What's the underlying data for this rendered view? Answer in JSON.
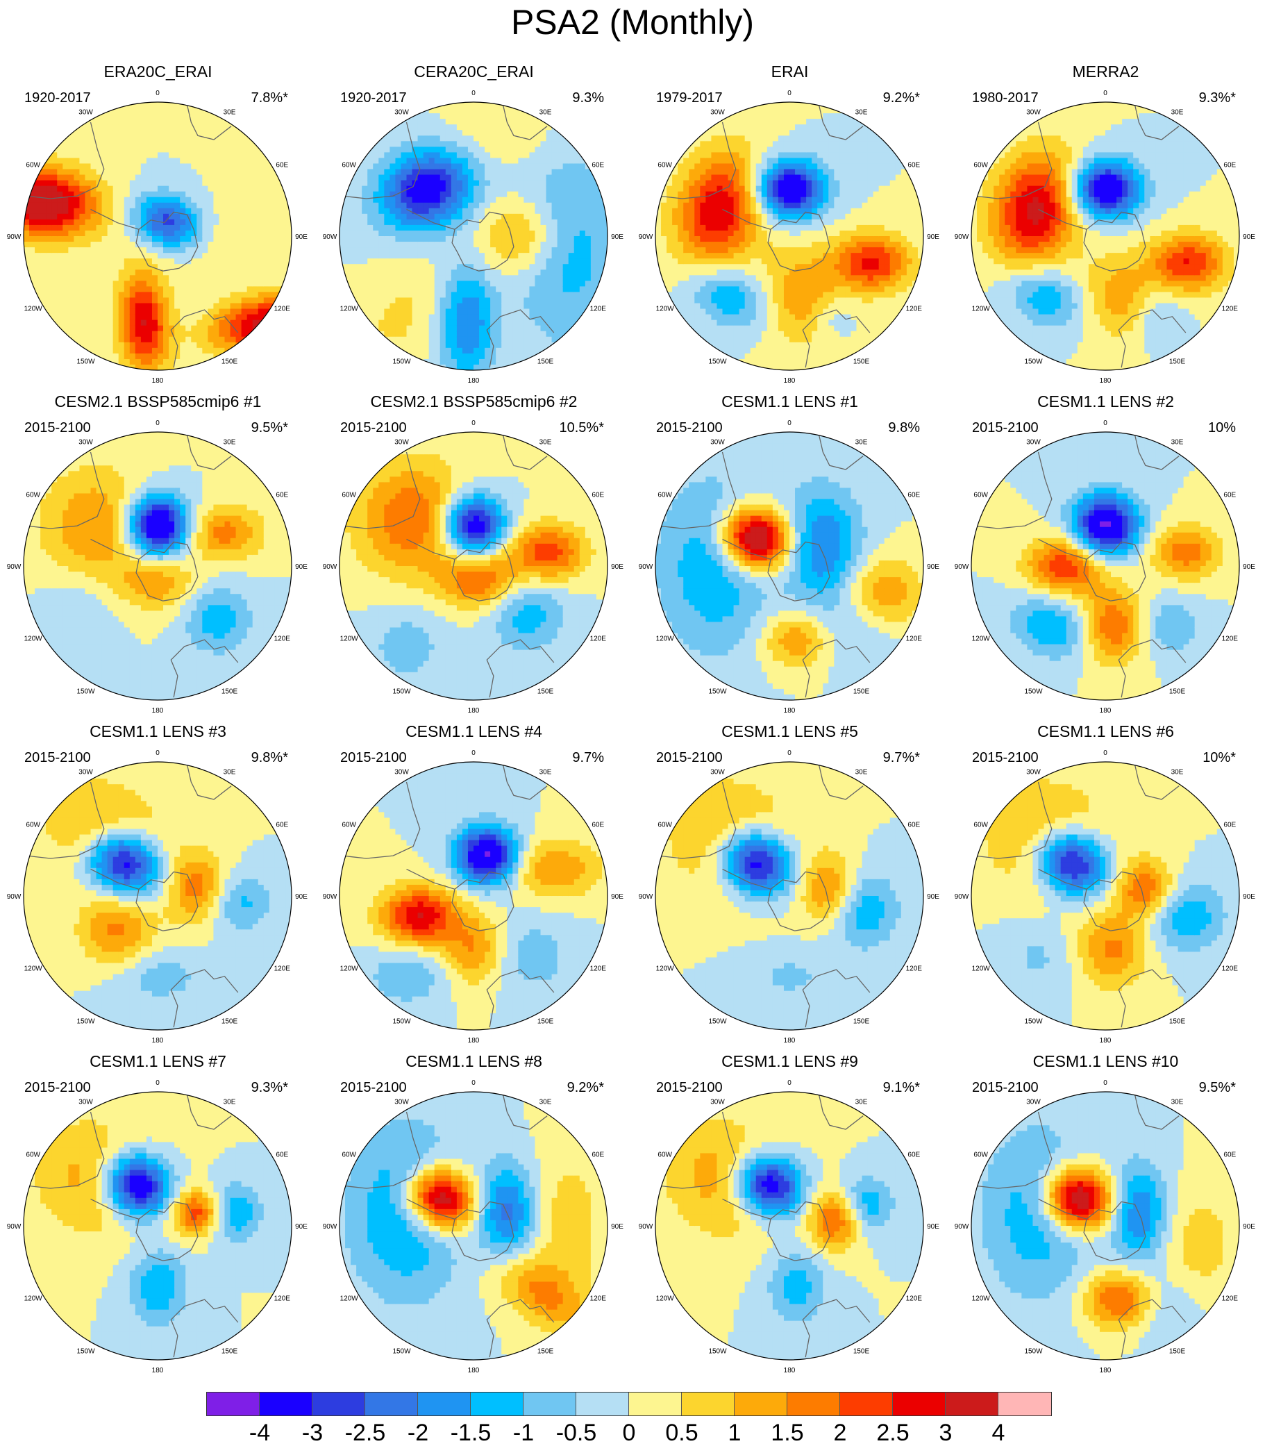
{
  "title": "PSA2 (Monthly)",
  "longitude_labels": [
    "0",
    "30E",
    "60E",
    "90E",
    "120E",
    "150E",
    "180",
    "150W",
    "120W",
    "90W",
    "60W",
    "30W"
  ],
  "panels": [
    {
      "title": "ERA20C_ERAI",
      "period": "1920-2017",
      "pct": "7.8%*",
      "blobs": [
        [
          0.8,
          0.65,
          3.2,
          0.28,
          0.14,
          -0.2
        ],
        [
          0.08,
          -0.1,
          -3,
          0.18,
          0.14,
          0.3
        ],
        [
          -0.85,
          -0.25,
          3.8,
          0.28,
          0.18,
          0.1
        ],
        [
          -0.1,
          0.65,
          3,
          0.26,
          0.13,
          1.5
        ],
        [
          0.25,
          0.0,
          0.5,
          0.3,
          0.2,
          0
        ]
      ]
    },
    {
      "title": "CERA20C_ERAI",
      "period": "1920-2017",
      "pct": "9.3%",
      "blobs": [
        [
          0.7,
          0.1,
          -1.3,
          0.3,
          0.5,
          0
        ],
        [
          -0.05,
          0.65,
          -2,
          0.14,
          0.3,
          0
        ],
        [
          -0.35,
          -0.35,
          -3.5,
          0.25,
          0.2,
          -0.4
        ],
        [
          0.35,
          0.0,
          1.5,
          0.22,
          0.2,
          0
        ],
        [
          -0.55,
          0.6,
          0.6,
          0.2,
          0.3,
          0.6
        ],
        [
          0.2,
          -0.75,
          0.5,
          0.3,
          0.2,
          0
        ]
      ]
    },
    {
      "title": "ERAI",
      "period": "1979-2017",
      "pct": "9.2%*",
      "blobs": [
        [
          0.62,
          0.2,
          2.6,
          0.2,
          0.15,
          0
        ],
        [
          0.0,
          -0.35,
          -4,
          0.18,
          0.15,
          0
        ],
        [
          -0.52,
          -0.2,
          3,
          0.22,
          0.3,
          0.3
        ],
        [
          -0.45,
          0.45,
          -1.5,
          0.22,
          0.15,
          0.4
        ],
        [
          0.1,
          0.45,
          1.5,
          0.2,
          0.25,
          0
        ],
        [
          0.3,
          0.6,
          -0.7,
          0.12,
          0.12,
          0
        ]
      ]
    },
    {
      "title": "MERRA2",
      "period": "1980-2017",
      "pct": "9.3%*",
      "blobs": [
        [
          0.62,
          0.2,
          2.5,
          0.2,
          0.15,
          0
        ],
        [
          0.0,
          -0.35,
          -4,
          0.18,
          0.15,
          0
        ],
        [
          -0.52,
          -0.2,
          3.2,
          0.22,
          0.3,
          0.3
        ],
        [
          -0.45,
          0.45,
          -1.5,
          0.22,
          0.15,
          0.4
        ],
        [
          0.1,
          0.45,
          1.3,
          0.2,
          0.22,
          0
        ],
        [
          0.4,
          0.6,
          -0.8,
          0.12,
          0.15,
          0
        ]
      ]
    },
    {
      "title": "CESM2.1 BSSP585cmip6 #1",
      "period": "2015-2100",
      "pct": "9.5%*",
      "blobs": [
        [
          0.5,
          -0.25,
          1.7,
          0.2,
          0.14,
          0
        ],
        [
          0.0,
          -0.3,
          -4.5,
          0.16,
          0.16,
          0
        ],
        [
          -0.45,
          -0.3,
          1.5,
          0.3,
          0.3,
          0.5
        ],
        [
          0.0,
          0.12,
          1.3,
          0.2,
          0.15,
          0
        ],
        [
          0.45,
          0.4,
          -1.3,
          0.18,
          0.18,
          0
        ],
        [
          -0.6,
          0.35,
          -0.6,
          0.2,
          0.2,
          0
        ]
      ]
    },
    {
      "title": "CESM2.1 BSSP585cmip6 #2",
      "period": "2015-2100",
      "pct": "10.5%*",
      "blobs": [
        [
          0.55,
          -0.1,
          2.3,
          0.2,
          0.15,
          0
        ],
        [
          0.0,
          -0.3,
          -4,
          0.16,
          0.16,
          0
        ],
        [
          -0.45,
          -0.35,
          2,
          0.3,
          0.3,
          0.5
        ],
        [
          0.05,
          0.1,
          2,
          0.2,
          0.15,
          0
        ],
        [
          0.4,
          0.35,
          -1.3,
          0.2,
          0.2,
          0
        ],
        [
          -0.5,
          0.6,
          -0.8,
          0.2,
          0.2,
          0
        ]
      ]
    },
    {
      "title": "CESM1.1 LENS #1",
      "period": "2015-2100",
      "pct": "9.8%",
      "blobs": [
        [
          0.25,
          -0.15,
          -2,
          0.2,
          0.3,
          0
        ],
        [
          -0.25,
          -0.2,
          4.5,
          0.18,
          0.16,
          0.3
        ],
        [
          -0.55,
          0.0,
          -1.5,
          0.3,
          0.45,
          0
        ],
        [
          0.7,
          0.2,
          1.5,
          0.2,
          0.18,
          0
        ],
        [
          0.05,
          0.55,
          1.5,
          0.18,
          0.15,
          0
        ],
        [
          0.5,
          0.5,
          -0.6,
          0.2,
          0.2,
          0
        ]
      ]
    },
    {
      "title": "CESM1.1 LENS #2",
      "period": "2015-2100",
      "pct": "10%",
      "blobs": [
        [
          0.6,
          -0.1,
          1.8,
          0.18,
          0.14,
          0
        ],
        [
          0.0,
          -0.3,
          -4.2,
          0.17,
          0.16,
          0
        ],
        [
          -0.3,
          0.0,
          2.5,
          0.2,
          0.15,
          0
        ],
        [
          0.05,
          0.45,
          2,
          0.16,
          0.2,
          0
        ],
        [
          -0.4,
          0.45,
          -1.5,
          0.22,
          0.16,
          0.4
        ],
        [
          0.5,
          0.45,
          -1,
          0.15,
          0.15,
          0
        ]
      ]
    },
    {
      "title": "CESM1.1 LENS #3",
      "period": "2015-2100",
      "pct": "9.8%*",
      "blobs": [
        [
          0.6,
          0.05,
          -1.2,
          0.18,
          0.15,
          0
        ],
        [
          -0.25,
          -0.25,
          -4.3,
          0.2,
          0.17,
          0.5
        ],
        [
          0.3,
          -0.05,
          1.8,
          0.15,
          0.18,
          0
        ],
        [
          -0.3,
          0.25,
          1.6,
          0.2,
          0.2,
          0
        ],
        [
          -0.35,
          -0.45,
          1.6,
          0.35,
          0.25,
          0.5
        ],
        [
          0.0,
          0.6,
          -0.8,
          0.25,
          0.15,
          0
        ]
      ]
    },
    {
      "title": "CESM1.1 LENS #4",
      "period": "2015-2100",
      "pct": "9.7%",
      "blobs": [
        [
          0.1,
          -0.3,
          -4.2,
          0.16,
          0.15,
          0
        ],
        [
          -0.4,
          0.15,
          3,
          0.2,
          0.15,
          0
        ],
        [
          0.6,
          -0.2,
          1.5,
          0.25,
          0.15,
          0
        ],
        [
          0.0,
          0.4,
          1.5,
          0.15,
          0.18,
          0
        ],
        [
          -0.5,
          0.6,
          -1,
          0.2,
          0.15,
          0
        ],
        [
          0.45,
          0.45,
          -0.8,
          0.2,
          0.2,
          0
        ]
      ]
    },
    {
      "title": "CESM1.1 LENS #5",
      "period": "2015-2100",
      "pct": "9.7%*",
      "blobs": [
        [
          0.55,
          0.1,
          -1.5,
          0.18,
          0.2,
          0
        ],
        [
          -0.25,
          -0.25,
          -4.3,
          0.2,
          0.17,
          0.5
        ],
        [
          0.3,
          -0.05,
          1.7,
          0.15,
          0.18,
          0
        ],
        [
          -0.4,
          -0.4,
          1.5,
          0.35,
          0.3,
          0.5
        ],
        [
          0.0,
          0.6,
          -0.6,
          0.25,
          0.15,
          0
        ]
      ]
    },
    {
      "title": "CESM1.1 LENS #6",
      "period": "2015-2100",
      "pct": "10%*",
      "blobs": [
        [
          0.6,
          0.15,
          -1.5,
          0.2,
          0.18,
          0
        ],
        [
          -0.25,
          -0.25,
          -4.2,
          0.2,
          0.17,
          0.5
        ],
        [
          0.3,
          -0.05,
          2,
          0.15,
          0.15,
          0
        ],
        [
          0.05,
          0.4,
          1.6,
          0.18,
          0.2,
          0
        ],
        [
          -0.4,
          -0.4,
          1.5,
          0.35,
          0.3,
          0.5
        ],
        [
          -0.5,
          0.45,
          -0.6,
          0.2,
          0.2,
          0
        ]
      ]
    },
    {
      "title": "CESM1.1 LENS #7",
      "period": "2015-2100",
      "pct": "9.3%*",
      "blobs": [
        [
          0.55,
          -0.1,
          -1.7,
          0.15,
          0.15,
          0
        ],
        [
          -0.15,
          -0.3,
          -4.3,
          0.18,
          0.16,
          0.5
        ],
        [
          0.3,
          -0.1,
          2.5,
          0.14,
          0.12,
          0
        ],
        [
          0.0,
          0.45,
          -1.5,
          0.15,
          0.2,
          0
        ],
        [
          -0.45,
          -0.35,
          1.3,
          0.35,
          0.3,
          0.5
        ]
      ]
    },
    {
      "title": "CESM1.1 LENS #8",
      "period": "2015-2100",
      "pct": "9.2%*",
      "blobs": [
        [
          0.25,
          -0.1,
          -2.2,
          0.15,
          0.25,
          0
        ],
        [
          -0.25,
          -0.2,
          4.3,
          0.18,
          0.16,
          0.3
        ],
        [
          -0.5,
          -0.1,
          -1.7,
          0.3,
          0.45,
          0
        ],
        [
          0.5,
          0.5,
          1.5,
          0.3,
          0.15,
          0.6
        ],
        [
          0.7,
          0.0,
          0.8,
          0.2,
          0.4,
          0
        ]
      ]
    },
    {
      "title": "CESM1.1 LENS #9",
      "period": "2015-2100",
      "pct": "9.1%*",
      "blobs": [
        [
          0.55,
          -0.15,
          -1.6,
          0.15,
          0.15,
          0
        ],
        [
          -0.15,
          -0.3,
          -4.2,
          0.18,
          0.16,
          0.5
        ],
        [
          0.35,
          -0.05,
          2.3,
          0.14,
          0.15,
          0
        ],
        [
          0.05,
          0.45,
          -1.3,
          0.15,
          0.2,
          0
        ],
        [
          -0.45,
          -0.35,
          1.4,
          0.35,
          0.3,
          0.5
        ]
      ]
    },
    {
      "title": "CESM1.1 LENS #10",
      "period": "2015-2100",
      "pct": "9.5%*",
      "blobs": [
        [
          0.25,
          -0.1,
          -2,
          0.15,
          0.25,
          0
        ],
        [
          -0.2,
          -0.2,
          4.2,
          0.18,
          0.16,
          0.3
        ],
        [
          -0.5,
          -0.1,
          -1.4,
          0.3,
          0.45,
          0
        ],
        [
          0.1,
          0.55,
          2.2,
          0.18,
          0.15,
          0
        ],
        [
          0.7,
          0.15,
          0.8,
          0.2,
          0.3,
          0
        ],
        [
          0.45,
          0.6,
          -0.6,
          0.2,
          0.2,
          0
        ]
      ]
    }
  ],
  "colorbar": {
    "colors": [
      "#7f1fe7",
      "#1a00ff",
      "#2d3de0",
      "#3377e6",
      "#1f94f2",
      "#00bfff",
      "#70c6f2",
      "#b5dff4",
      "#fdf590",
      "#fcd52e",
      "#fdaa0a",
      "#fd7c00",
      "#fd3d00",
      "#eb0000",
      "#cc1b1b",
      "#ffb6b6"
    ],
    "labels": [
      "-4",
      "-3",
      "-2.5",
      "-2",
      "-1.5",
      "-1",
      "-0.5",
      "0",
      "0.5",
      "1",
      "1.5",
      "2",
      "2.5",
      "3",
      "4"
    ]
  }
}
